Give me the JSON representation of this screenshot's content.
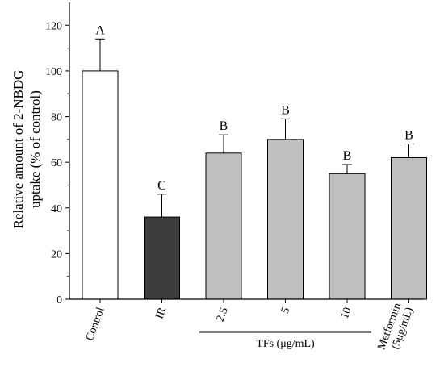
{
  "chart_data": {
    "type": "bar",
    "categories": [
      "Control",
      "IR",
      "2.5",
      "5",
      "10",
      "Metformin (5μg/mL)"
    ],
    "category_lines": [
      [
        "Control"
      ],
      [
        "IR"
      ],
      [
        "2.5"
      ],
      [
        "5"
      ],
      [
        "10"
      ],
      [
        "Metformin",
        "(5μg/mL)"
      ]
    ],
    "values": [
      100,
      36,
      64,
      70,
      55,
      62
    ],
    "errors": [
      14,
      10,
      8,
      9,
      4,
      6
    ],
    "significance": [
      "A",
      "C",
      "B",
      "B",
      "B",
      "B"
    ],
    "bar_colors": [
      "#ffffff",
      "#3d3d3d",
      "#c0c0c0",
      "#c0c0c0",
      "#c0c0c0",
      "#c0c0c0"
    ],
    "ylabel_lines": [
      "Relative amount of 2-NBDG",
      "uptake (% of control)"
    ],
    "ylim": [
      0,
      130
    ],
    "yticks": [
      0,
      20,
      40,
      60,
      80,
      100,
      120
    ],
    "group": {
      "label": "TFs (μg/mL)",
      "from_index": 2,
      "to_index": 4
    },
    "grid": false
  }
}
